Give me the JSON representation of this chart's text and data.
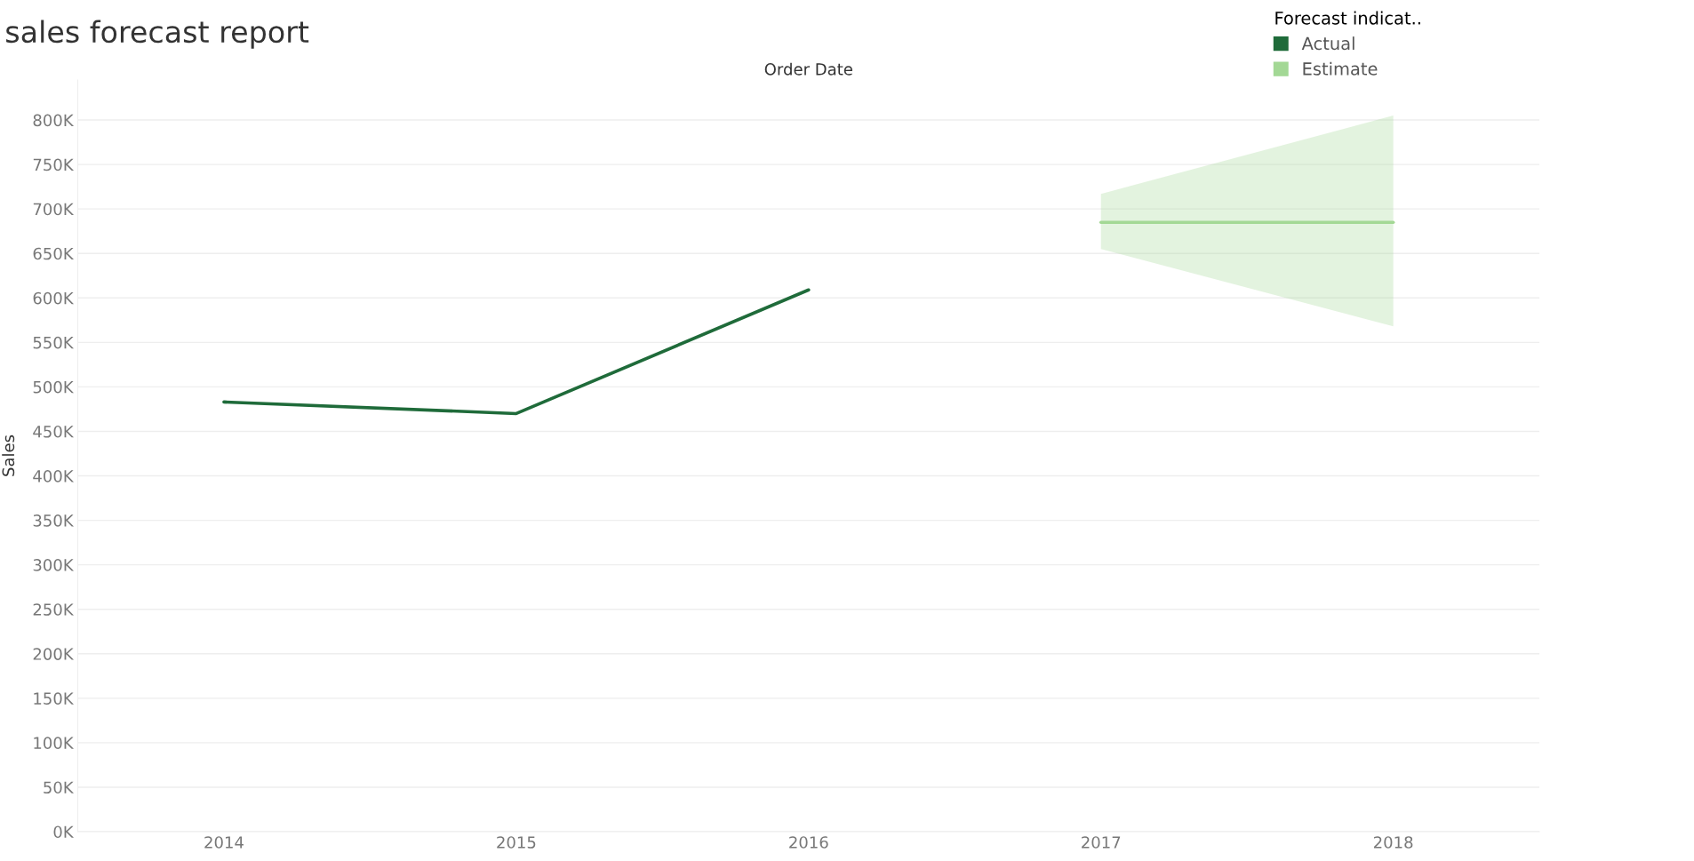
{
  "chart_data": {
    "type": "line",
    "title": "sales forecast report",
    "xlabel": "Order Date",
    "ylabel": "Sales",
    "legend_title": "Forecast indicat..",
    "categories": [
      "2014",
      "2015",
      "2016",
      "2017",
      "2018"
    ],
    "series": [
      {
        "name": "Actual",
        "color": "#1f6b3a",
        "values": [
          483000,
          470000,
          609000,
          null,
          null
        ]
      },
      {
        "name": "Estimate",
        "color": "#a3d895",
        "values": [
          null,
          null,
          null,
          685000,
          685000
        ],
        "lower": [
          null,
          null,
          null,
          655000,
          568000
        ],
        "upper": [
          null,
          null,
          null,
          717000,
          805000
        ]
      }
    ],
    "ylim": [
      0,
      845000
    ],
    "yticks": [
      {
        "value": 0,
        "label": "0K"
      },
      {
        "value": 50000,
        "label": "50K"
      },
      {
        "value": 100000,
        "label": "100K"
      },
      {
        "value": 150000,
        "label": "150K"
      },
      {
        "value": 200000,
        "label": "200K"
      },
      {
        "value": 250000,
        "label": "250K"
      },
      {
        "value": 300000,
        "label": "300K"
      },
      {
        "value": 350000,
        "label": "350K"
      },
      {
        "value": 400000,
        "label": "400K"
      },
      {
        "value": 450000,
        "label": "450K"
      },
      {
        "value": 500000,
        "label": "500K"
      },
      {
        "value": 550000,
        "label": "550K"
      },
      {
        "value": 600000,
        "label": "600K"
      },
      {
        "value": 650000,
        "label": "650K"
      },
      {
        "value": 700000,
        "label": "700K"
      },
      {
        "value": 750000,
        "label": "750K"
      },
      {
        "value": 800000,
        "label": "800K"
      }
    ],
    "grid": "y",
    "legend": "top right",
    "marker": "none",
    "line_style": "solid"
  }
}
